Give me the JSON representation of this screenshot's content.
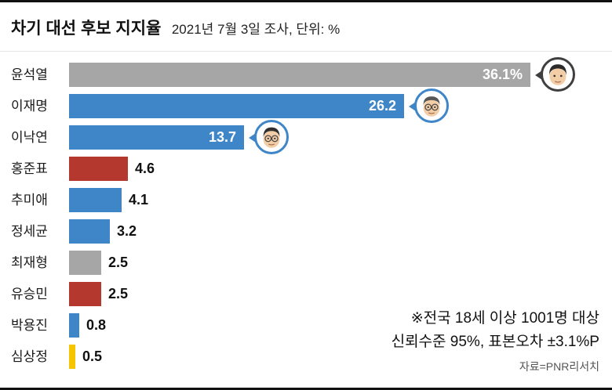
{
  "header": {
    "title": "차기 대선 후보 지지율",
    "subtitle": "2021년 7월 3일 조사, 단위: %"
  },
  "chart_data": {
    "type": "bar",
    "orientation": "horizontal",
    "title": "차기 대선 후보 지지율",
    "subtitle": "2021년 7월 3일 조사",
    "unit": "%",
    "max_value": 36.1,
    "categories": [
      "윤석열",
      "이재명",
      "이낙연",
      "홍준표",
      "추미애",
      "정세균",
      "최재형",
      "유승민",
      "박용진",
      "심상정"
    ],
    "values": [
      36.1,
      26.2,
      13.7,
      4.6,
      4.1,
      3.2,
      2.5,
      2.5,
      0.8,
      0.5
    ],
    "colors": {
      "gray": "#a6a6a6",
      "blue": "#3e86c7",
      "red": "#b5382f",
      "yellow": "#f6c500"
    },
    "rows": [
      {
        "name": "윤석열",
        "value": 36.1,
        "label": "36.1%",
        "color": "#a6a6a6",
        "label_inside": true,
        "avatar": {
          "border": "#3f3f3f"
        }
      },
      {
        "name": "이재명",
        "value": 26.2,
        "label": "26.2",
        "color": "#3e86c7",
        "label_inside": true,
        "avatar": {
          "border": "#3e86c7"
        }
      },
      {
        "name": "이낙연",
        "value": 13.7,
        "label": "13.7",
        "color": "#3e86c7",
        "label_inside": true,
        "avatar": {
          "border": "#3e86c7"
        }
      },
      {
        "name": "홍준표",
        "value": 4.6,
        "label": "4.6",
        "color": "#b5382f",
        "label_inside": false
      },
      {
        "name": "추미애",
        "value": 4.1,
        "label": "4.1",
        "color": "#3e86c7",
        "label_inside": false
      },
      {
        "name": "정세균",
        "value": 3.2,
        "label": "3.2",
        "color": "#3e86c7",
        "label_inside": false
      },
      {
        "name": "최재형",
        "value": 2.5,
        "label": "2.5",
        "color": "#a6a6a6",
        "label_inside": false
      },
      {
        "name": "유승민",
        "value": 2.5,
        "label": "2.5",
        "color": "#b5382f",
        "label_inside": false
      },
      {
        "name": "박용진",
        "value": 0.8,
        "label": "0.8",
        "color": "#3e86c7",
        "label_inside": false
      },
      {
        "name": "심상정",
        "value": 0.5,
        "label": "0.5",
        "color": "#f6c500",
        "label_inside": false
      }
    ]
  },
  "footnotes": {
    "line1": "※전국 18세 이상 1001명 대상",
    "line2": "신뢰수준 95%, 표본오차 ±3.1%P",
    "source": "자료=PNR리서치"
  }
}
